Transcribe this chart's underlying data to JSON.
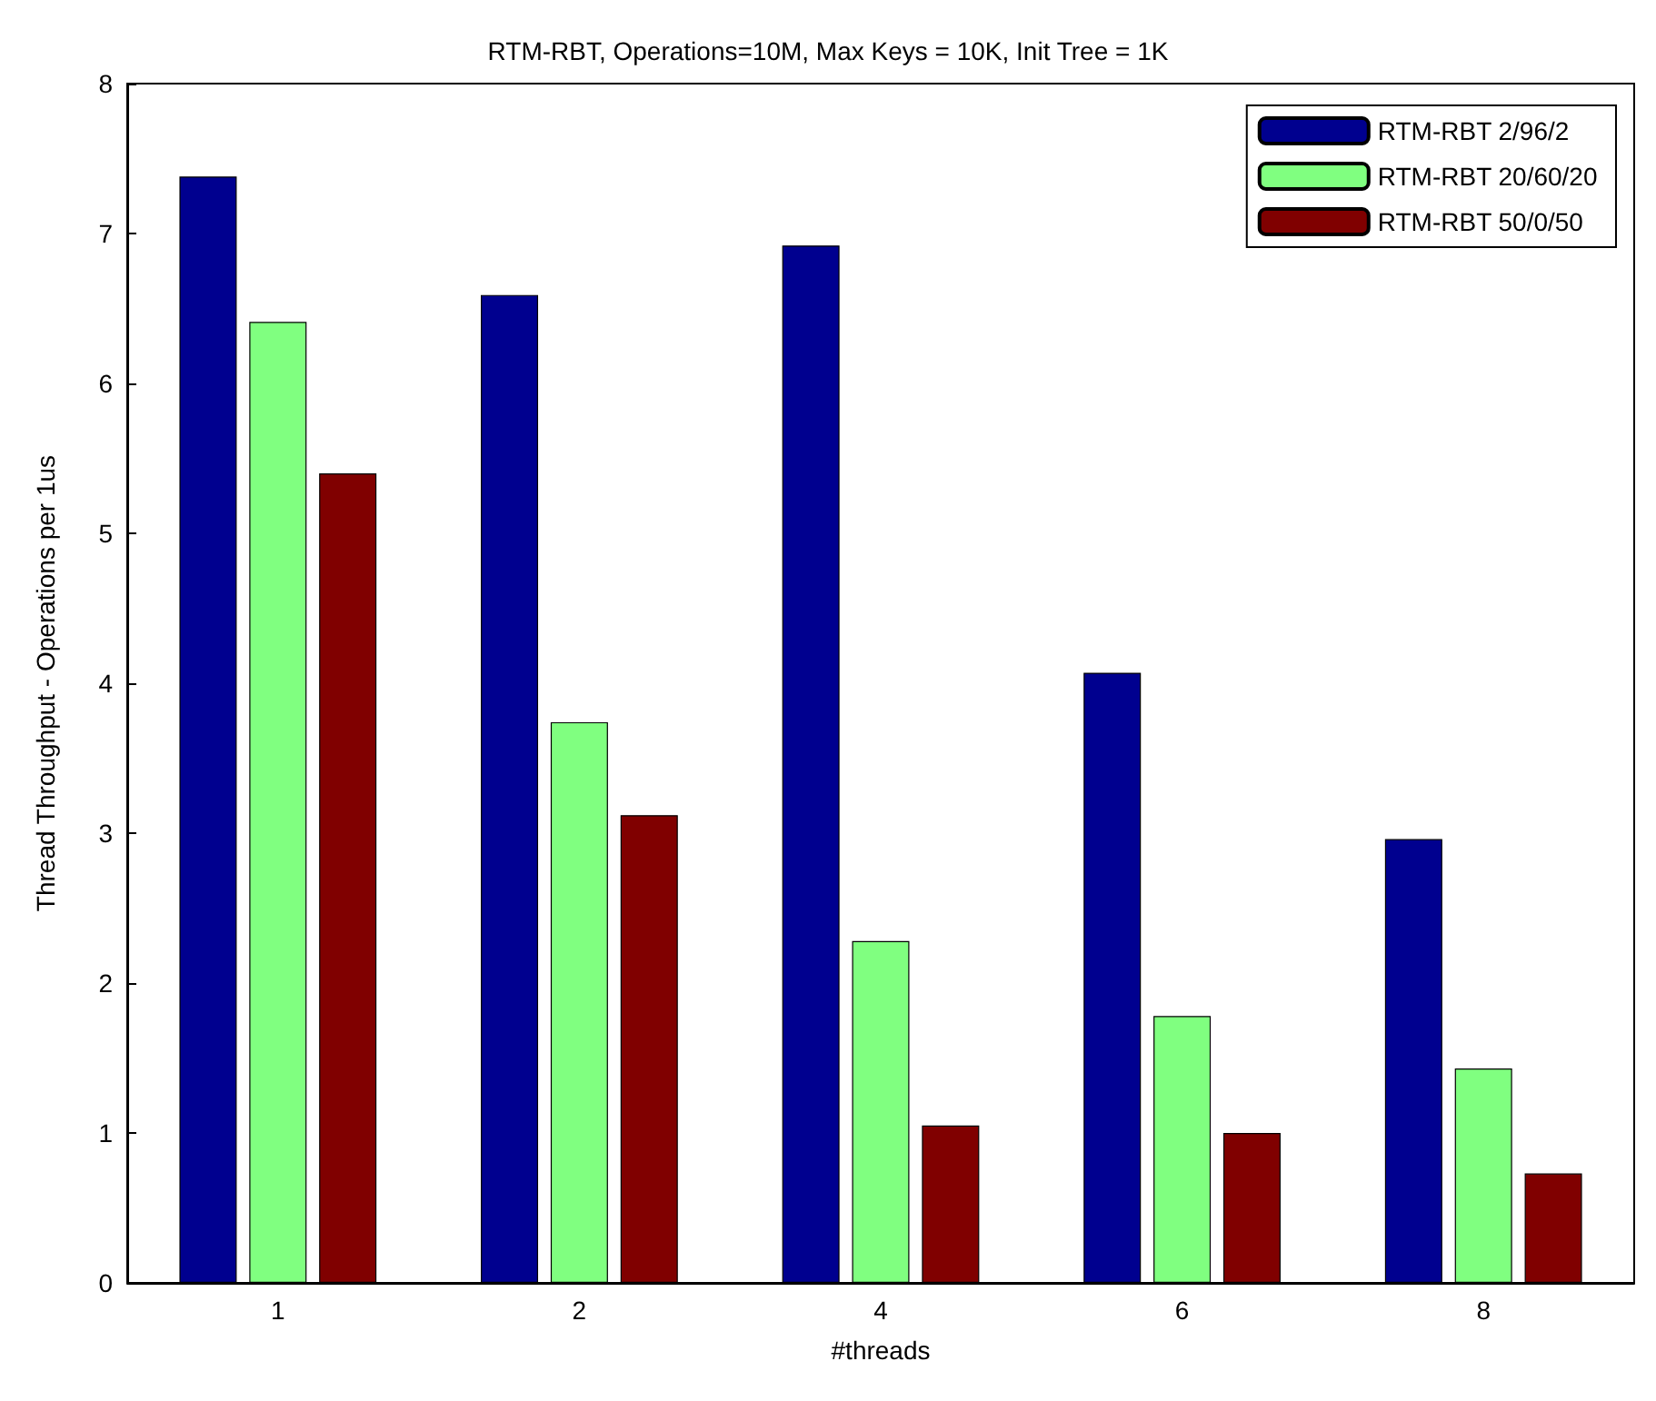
{
  "chart_data": {
    "type": "bar",
    "title": "RTM-RBT, Operations=10M, Max Keys = 10K, Init Tree = 1K",
    "xlabel": "#threads",
    "ylabel": "Thread Throughput - Operations per 1us",
    "categories": [
      "1",
      "2",
      "4",
      "6",
      "8"
    ],
    "series": [
      {
        "name": "RTM-RBT 2/96/2",
        "color": "#00008f",
        "values": [
          7.38,
          6.59,
          6.92,
          4.07,
          2.96
        ]
      },
      {
        "name": "RTM-RBT 20/60/20",
        "color": "#80ff80",
        "values": [
          6.41,
          3.74,
          2.28,
          1.78,
          1.43
        ]
      },
      {
        "name": "RTM-RBT 50/0/50",
        "color": "#800000",
        "values": [
          5.4,
          3.12,
          1.05,
          1.0,
          0.73
        ]
      }
    ],
    "ylim": [
      0,
      8
    ],
    "yticks": [
      0,
      1,
      2,
      3,
      4,
      5,
      6,
      7,
      8
    ],
    "grid": false,
    "legend": "top right"
  }
}
